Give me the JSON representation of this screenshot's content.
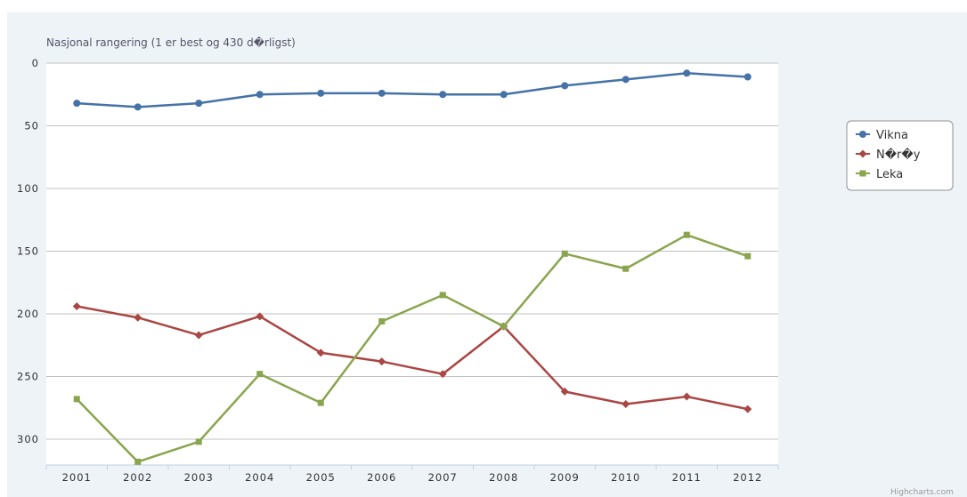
{
  "chart_data": {
    "type": "line",
    "title": "Nasjonal rangering (1 er best og 430 d�rligst)",
    "xlabel": "",
    "ylabel": "",
    "categories": [
      "2001",
      "2002",
      "2003",
      "2004",
      "2005",
      "2006",
      "2007",
      "2008",
      "2009",
      "2010",
      "2011",
      "2012"
    ],
    "y_reversed": true,
    "ylim": [
      0,
      320
    ],
    "yticks": [
      0,
      50,
      100,
      150,
      200,
      250,
      300
    ],
    "grid": true,
    "legend_position": "right",
    "series": [
      {
        "name": "Vikna",
        "color": "#4572a7",
        "marker": "circle",
        "values": [
          32,
          35,
          32,
          25,
          24,
          24,
          25,
          25,
          18,
          13,
          8,
          11
        ]
      },
      {
        "name": "N�r�y",
        "color": "#aa4643",
        "marker": "diamond",
        "values": [
          194,
          203,
          217,
          202,
          231,
          238,
          248,
          210,
          262,
          272,
          266,
          276
        ]
      },
      {
        "name": "Leka",
        "color": "#89a54e",
        "marker": "square",
        "values": [
          268,
          318,
          302,
          248,
          271,
          206,
          185,
          210,
          152,
          164,
          137,
          154
        ]
      }
    ],
    "credits": "Highcharts.com"
  }
}
